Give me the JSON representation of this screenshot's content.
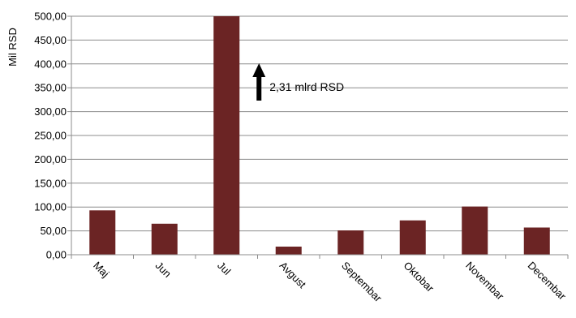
{
  "chart_data": {
    "type": "bar",
    "ylabel": "Mil RSD",
    "ylim": [
      0,
      500
    ],
    "ytick_step": 50,
    "grid": true,
    "legend": "none",
    "bar_color": "#6b2424",
    "categories": [
      "Maj",
      "Jun",
      "Jul",
      "Avgust",
      "Septembar",
      "Oktobar",
      "Novembar",
      "Decembar"
    ],
    "values": [
      93,
      65,
      500,
      17,
      51,
      72,
      101,
      57
    ],
    "y_tick_labels": [
      "0,00",
      "50,00",
      "100,00",
      "150,00",
      "200,00",
      "250,00",
      "300,00",
      "350,00",
      "400,00",
      "450,00",
      "500,00"
    ],
    "annotation": {
      "text": "2,31 mlrd RSD",
      "category": "Jul",
      "note_value": 2310
    }
  }
}
